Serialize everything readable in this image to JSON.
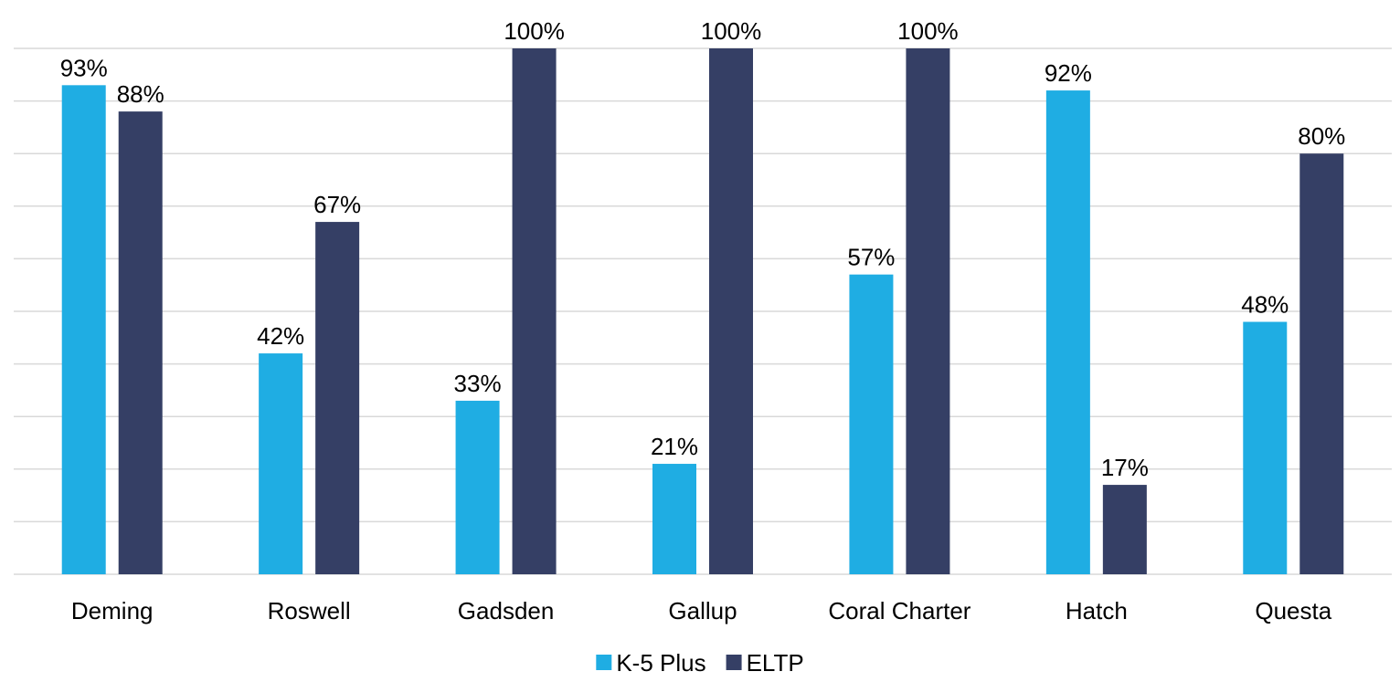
{
  "chart_data": {
    "type": "bar",
    "title": "",
    "xlabel": "",
    "ylabel": "",
    "categories": [
      "Deming",
      "Roswell",
      "Gadsden",
      "Gallup",
      "Coral Charter",
      "Hatch",
      "Questa"
    ],
    "series": [
      {
        "name": "K-5 Plus",
        "color": "#1fade3",
        "values": [
          93,
          42,
          33,
          21,
          57,
          92,
          48
        ],
        "labels": [
          "93%",
          "42%",
          "33%",
          "21%",
          "57%",
          "92%",
          "48%"
        ]
      },
      {
        "name": "ELTP",
        "color": "#353f65",
        "values": [
          88,
          67,
          100,
          100,
          100,
          17,
          80
        ],
        "labels": [
          "88%",
          "67%",
          "100%",
          "100%",
          "100%",
          "17%",
          "80%"
        ]
      }
    ],
    "ylim": [
      0,
      100
    ],
    "grid_step": 10,
    "grid": true,
    "y_axis_labels_shown": false,
    "legend_position": "bottom-center"
  }
}
